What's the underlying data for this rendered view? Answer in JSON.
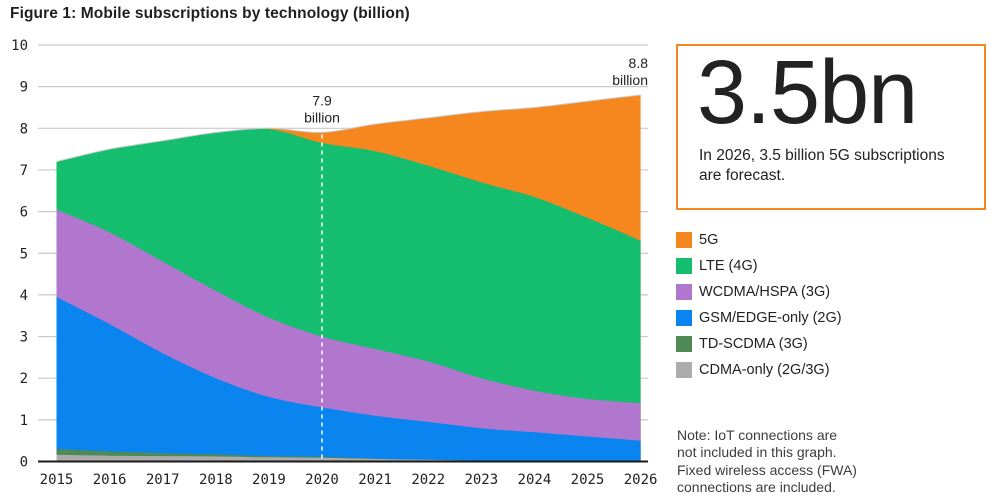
{
  "title": "Figure 1: Mobile subscriptions by technology (billion)",
  "chart_data": {
    "type": "area",
    "stacked": true,
    "grid": true,
    "x": [
      2015,
      2016,
      2017,
      2018,
      2019,
      2020,
      2021,
      2022,
      2023,
      2024,
      2025,
      2026
    ],
    "xlim": [
      2015,
      2026
    ],
    "ylim": [
      0,
      10
    ],
    "yticks": [
      0,
      1,
      2,
      3,
      4,
      5,
      6,
      7,
      8,
      9,
      10
    ],
    "series": [
      {
        "name": "CDMA-only (2G/3G)",
        "color": "#ACACAC",
        "values": [
          0.16,
          0.14,
          0.13,
          0.12,
          0.1,
          0.09,
          0.06,
          0.04,
          0.02,
          0.01,
          0.0,
          0.0
        ]
      },
      {
        "name": "TD-SCDMA (3G)",
        "color": "#4E8A55",
        "values": [
          0.14,
          0.1,
          0.07,
          0.05,
          0.03,
          0.02,
          0.01,
          0.0,
          0.0,
          0.0,
          0.0,
          0.0
        ]
      },
      {
        "name": "GSM/EDGE-only (2G)",
        "color": "#0A85F0",
        "values": [
          3.65,
          3.06,
          2.4,
          1.83,
          1.42,
          1.19,
          1.03,
          0.91,
          0.78,
          0.69,
          0.6,
          0.5
        ]
      },
      {
        "name": "WCDMA/HSPA (3G)",
        "color": "#B177CF",
        "values": [
          2.1,
          2.2,
          2.2,
          2.1,
          1.9,
          1.7,
          1.6,
          1.45,
          1.2,
          1.0,
          0.9,
          0.9
        ]
      },
      {
        "name": "LTE (4G)",
        "color": "#14BE6E",
        "values": [
          1.15,
          2.0,
          2.9,
          3.8,
          4.53,
          4.65,
          4.75,
          4.7,
          4.7,
          4.65,
          4.35,
          3.9
        ]
      },
      {
        "name": "5G",
        "color": "#F6871F",
        "values": [
          0.0,
          0.0,
          0.0,
          0.0,
          0.02,
          0.25,
          0.65,
          1.15,
          1.7,
          2.15,
          2.8,
          3.5
        ]
      }
    ],
    "totals": [
      7.2,
      7.5,
      7.7,
      7.9,
      8.0,
      7.9,
      8.1,
      8.25,
      8.4,
      8.5,
      8.65,
      8.8
    ],
    "annotations": [
      {
        "year": 2020,
        "lines": [
          "7.9",
          "billion"
        ],
        "align": "center",
        "dashed_line": true
      },
      {
        "year": 2026,
        "lines": [
          "8.8",
          "billion"
        ],
        "align": "right",
        "dashed_line": false
      }
    ],
    "legend_position": "right"
  },
  "callout": {
    "headline": "3.5bn",
    "body": "In 2026, 3.5 billion 5G subscriptions are forecast.",
    "border_color": "#F6871F"
  },
  "legend": [
    {
      "label": "5G",
      "color": "#F6871F"
    },
    {
      "label": "LTE (4G)",
      "color": "#14BE6E"
    },
    {
      "label": "WCDMA/HSPA (3G)",
      "color": "#B177CF"
    },
    {
      "label": "GSM/EDGE-only (2G)",
      "color": "#0A85F0"
    },
    {
      "label": "TD-SCDMA (3G)",
      "color": "#4E8A55"
    },
    {
      "label": "CDMA-only (2G/3G)",
      "color": "#ACACAC"
    }
  ],
  "note": {
    "lines": [
      "Note: IoT connections are",
      "not included in this graph.",
      "Fixed wireless access (FWA)",
      "connections are included."
    ]
  },
  "colors": {
    "gridline": "#c9c9c9",
    "axis": "#1a1a1a",
    "envelope_stroke": "#c9c9c9",
    "dashed_reference": "#ffffff"
  }
}
